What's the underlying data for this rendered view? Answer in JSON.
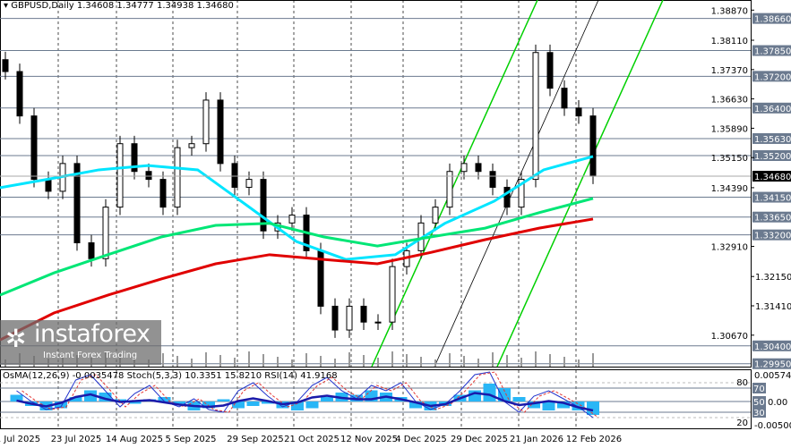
{
  "header": {
    "symbol": "GBPUSD,Daily",
    "ohlc": "1.34608 1.34777 1.34938 1.34680"
  },
  "indicators": {
    "label": "OsMA(12,26,9) -0.0035478  Stoch(5,3,3) 10.3351 15.8210  RSI(14) 41.9168",
    "max": "0.0057444",
    "min": "-0.005005",
    "zero": "0.00",
    "levels": [
      "80",
      "70",
      "50",
      "30",
      "20"
    ]
  },
  "watermark": {
    "brand": "instaforex",
    "tagline": "Instant Forex Trading"
  },
  "colors": {
    "up": "#000000",
    "ema_fast": "#00e5ff",
    "ema_mid": "#00e676",
    "ema_slow": "#e00000",
    "channel": "#00d000",
    "level": "#6b7a8f"
  },
  "chart_data": {
    "type": "candlestick",
    "title": "GBPUSD,Daily",
    "ylim": [
      1.296,
      1.389
    ],
    "price_ticks": [
      "1.38870",
      "1.38110",
      "1.37370",
      "1.36630",
      "1.35890",
      "1.35150",
      "1.34390",
      "1.32910",
      "1.32150",
      "1.31410",
      "1.30670"
    ],
    "levels": [
      "1.38660",
      "1.37850",
      "1.37200",
      "1.36400",
      "1.35630",
      "1.35200",
      "1.34150",
      "1.33650",
      "1.33200",
      "1.30400",
      "1.29950"
    ],
    "current_price": "1.34680",
    "x_labels": [
      "1 Jul 2025",
      "23 Jul 2025",
      "14 Aug 2025",
      "5 Sep 2025",
      "29 Sep 2025",
      "21 Oct 2025",
      "12 Nov 2025",
      "4 Dec 2025",
      "29 Dec 2025",
      "21 Jan 2026",
      "12 Feb 2026"
    ],
    "closes": [
      1.3732,
      1.362,
      1.346,
      1.343,
      1.35,
      1.33,
      1.326,
      1.339,
      1.355,
      1.348,
      1.346,
      1.339,
      1.354,
      1.355,
      1.366,
      1.35,
      1.344,
      1.346,
      1.333,
      1.335,
      1.337,
      1.328,
      1.314,
      1.308,
      1.314,
      1.31,
      1.31,
      1.324,
      1.328,
      1.335,
      1.339,
      1.348,
      1.35,
      1.348,
      1.344,
      1.339,
      1.346,
      1.378,
      1.369,
      1.364,
      1.362,
      1.3468
    ],
    "series": [
      {
        "name": "MA fast",
        "values": [
          1.3439,
          1.3461,
          1.3484,
          1.3495,
          1.3484,
          1.3394,
          1.3303,
          1.3258,
          1.327,
          1.3349,
          1.3405,
          1.3484,
          1.3518
        ]
      },
      {
        "name": "MA mid",
        "values": [
          1.3168,
          1.3224,
          1.327,
          1.3315,
          1.3344,
          1.3349,
          1.3315,
          1.3292,
          1.3315,
          1.3337,
          1.3376,
          1.3412
        ]
      },
      {
        "name": "MA slow",
        "values": [
          1.3055,
          1.3123,
          1.3168,
          1.3209,
          1.3247,
          1.327,
          1.3258,
          1.3247,
          1.3276,
          1.3308,
          1.3337,
          1.336
        ]
      }
    ],
    "osma": [
      0.3,
      -0.2,
      -0.4,
      -0.3,
      0.2,
      0.5,
      0.4,
      0.1,
      -0.1,
      0.1,
      0.2,
      -0.1,
      -0.4,
      -0.3,
      0.1,
      -0.3,
      -0.2,
      -0.1,
      -0.3,
      -0.4,
      -0.3,
      0.2,
      0.4,
      0.3,
      0.5,
      0.4,
      0.2,
      -0.3,
      -0.4,
      -0.2,
      0.3,
      0.5,
      0.8,
      0.6,
      0.2,
      -0.3,
      -0.4,
      -0.3,
      -0.4,
      -0.6
    ],
    "stoch": [
      60,
      40,
      25,
      30,
      80,
      90,
      60,
      30,
      55,
      70,
      40,
      30,
      45,
      25,
      20,
      60,
      75,
      50,
      30,
      40,
      70,
      85,
      60,
      45,
      70,
      60,
      75,
      40,
      25,
      35,
      60,
      90,
      95,
      40,
      20,
      50,
      60,
      45,
      30,
      10
    ]
  }
}
